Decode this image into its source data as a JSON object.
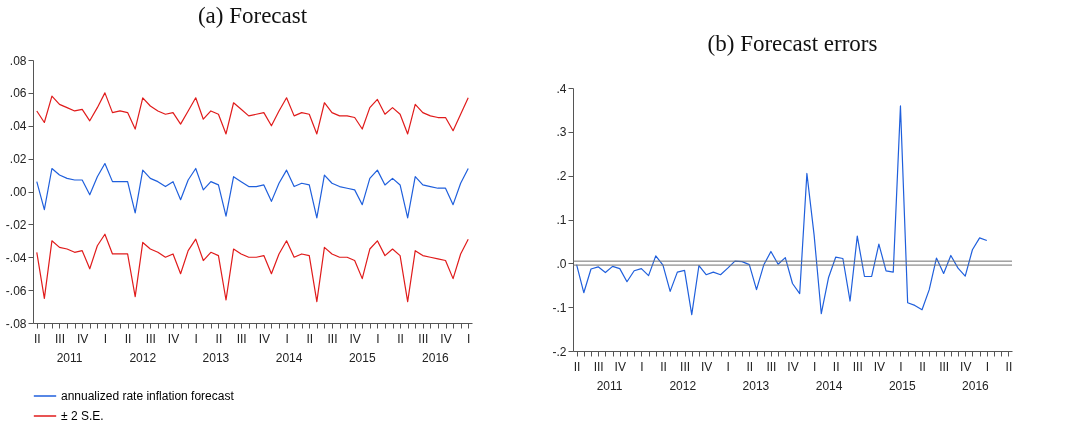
{
  "chart_data": [
    {
      "type": "line",
      "title": "(a) Forecast",
      "categories": [
        "II",
        null,
        null,
        "III",
        null,
        null,
        "IV",
        null,
        null,
        "I",
        null,
        null,
        "II",
        null,
        null,
        "III",
        null,
        null,
        "IV",
        null,
        null,
        "I",
        null,
        null,
        "II",
        null,
        null,
        "III",
        null,
        null,
        "IV",
        null,
        null,
        "I",
        null,
        null,
        "II",
        null,
        null,
        "III",
        null,
        null,
        "IV",
        null,
        null,
        "I",
        null,
        null,
        "II",
        null,
        null,
        "III",
        null,
        null,
        "IV",
        null,
        null,
        "I"
      ],
      "series": [
        {
          "name": "annualized rate inflation forecast",
          "color": "#1f5fdc",
          "values": [
            0.006,
            -0.011,
            0.014,
            0.01,
            0.008,
            0.007,
            0.007,
            -0.002,
            0.009,
            0.017,
            0.006,
            0.006,
            0.006,
            -0.013,
            0.013,
            0.008,
            0.006,
            0.003,
            0.006,
            -0.005,
            0.007,
            0.014,
            0.001,
            0.006,
            0.004,
            -0.015,
            0.009,
            0.006,
            0.003,
            0.003,
            0.004,
            -0.006,
            0.005,
            0.013,
            0.003,
            0.005,
            0.004,
            -0.016,
            0.01,
            0.005,
            0.003,
            0.002,
            0.001,
            -0.008,
            0.008,
            0.013,
            0.004,
            0.008,
            0.004,
            -0.016,
            0.009,
            0.004,
            0.003,
            0.002,
            0.002,
            -0.008,
            0.005,
            0.014
          ]
        },
        {
          "name": "± 2 S.E.",
          "color": "#e01b1b",
          "values": [
            0.049,
            0.042,
            0.058,
            0.053,
            0.051,
            0.049,
            0.05,
            0.043,
            0.051,
            0.06,
            0.048,
            0.049,
            0.048,
            0.038,
            0.057,
            0.052,
            0.049,
            0.047,
            0.048,
            0.041,
            0.049,
            0.057,
            0.044,
            0.049,
            0.047,
            0.035,
            0.054,
            0.05,
            0.046,
            0.047,
            0.048,
            0.04,
            0.049,
            0.057,
            0.046,
            0.048,
            0.047,
            0.035,
            0.054,
            0.048,
            0.046,
            0.046,
            0.045,
            0.038,
            0.051,
            0.056,
            0.047,
            0.051,
            0.047,
            0.035,
            0.053,
            0.048,
            0.046,
            0.045,
            0.045,
            0.037,
            0.047,
            0.057
          ]
        },
        {
          "color": "#e01b1b",
          "values": [
            -0.037,
            -0.065,
            -0.03,
            -0.034,
            -0.035,
            -0.037,
            -0.036,
            -0.047,
            -0.033,
            -0.026,
            -0.038,
            -0.038,
            -0.038,
            -0.064,
            -0.031,
            -0.035,
            -0.037,
            -0.04,
            -0.038,
            -0.05,
            -0.036,
            -0.029,
            -0.042,
            -0.037,
            -0.039,
            -0.066,
            -0.035,
            -0.038,
            -0.04,
            -0.04,
            -0.039,
            -0.05,
            -0.038,
            -0.03,
            -0.04,
            -0.038,
            -0.039,
            -0.067,
            -0.034,
            -0.038,
            -0.04,
            -0.04,
            -0.042,
            -0.053,
            -0.035,
            -0.03,
            -0.039,
            -0.035,
            -0.039,
            -0.067,
            -0.036,
            -0.039,
            -0.04,
            -0.041,
            -0.042,
            -0.053,
            -0.038,
            -0.029
          ]
        }
      ],
      "ylim": [
        -0.08,
        0.08
      ],
      "yticks": [
        {
          "value": -0.08,
          "label": "-.08"
        },
        {
          "value": -0.06,
          "label": "-.06"
        },
        {
          "value": -0.04,
          "label": "-.04"
        },
        {
          "value": -0.02,
          "label": "-.02"
        },
        {
          "value": 0,
          "label": ".00"
        },
        {
          "value": 0.02,
          "label": ".02"
        },
        {
          "value": 0.04,
          "label": ".04"
        },
        {
          "value": 0.06,
          "label": ".06"
        },
        {
          "value": 0.08,
          "label": ".08"
        }
      ],
      "annotations": [
        "2011",
        "2012",
        "2013",
        "2014",
        "2015",
        "2016"
      ],
      "legend": "bottom",
      "grid": false,
      "line_style": "solid"
    },
    {
      "type": "line",
      "title": "(b) Forecast errors",
      "categories": [
        "II",
        null,
        null,
        "III",
        null,
        null,
        "IV",
        null,
        null,
        "I",
        null,
        null,
        "II",
        null,
        null,
        "III",
        null,
        null,
        "IV",
        null,
        null,
        "I",
        null,
        null,
        "II",
        null,
        null,
        "III",
        null,
        null,
        "IV",
        null,
        null,
        "I",
        null,
        null,
        "II",
        null,
        null,
        "III",
        null,
        null,
        "IV",
        null,
        null,
        "I",
        null,
        null,
        "II",
        null,
        null,
        "III",
        null,
        null,
        "IV",
        null,
        null,
        "I",
        null,
        null,
        "II"
      ],
      "series": [
        {
          "color": "#1f5fdc",
          "values": [
            -0.003,
            -0.067,
            -0.013,
            -0.008,
            -0.021,
            -0.007,
            -0.012,
            -0.042,
            -0.017,
            -0.012,
            -0.028,
            0.017,
            -0.004,
            -0.064,
            -0.02,
            -0.016,
            -0.117,
            -0.005,
            -0.026,
            -0.02,
            -0.026,
            -0.011,
            0.005,
            0.004,
            -0.003,
            -0.06,
            -0.004,
            0.027,
            -0.002,
            0.013,
            -0.046,
            -0.069,
            0.205,
            0.065,
            -0.115,
            -0.033,
            0.014,
            0.011,
            -0.086,
            0.062,
            -0.03,
            -0.03,
            0.044,
            -0.017,
            -0.02,
            0.359,
            -0.09,
            -0.096,
            -0.106,
            -0.06,
            0.012,
            -0.023,
            0.018,
            -0.011,
            -0.029,
            0.031,
            0.058,
            0.052,
            null,
            null,
            null
          ]
        }
      ],
      "ylim": [
        -0.2,
        0.4
      ],
      "yticks": [
        {
          "value": -0.2,
          "label": "-.2"
        },
        {
          "value": -0.1,
          "label": "-.1"
        },
        {
          "value": 0,
          "label": ".0"
        },
        {
          "value": 0.1,
          "label": ".1"
        },
        {
          "value": 0.2,
          "label": ".2"
        },
        {
          "value": 0.3,
          "label": ".3"
        },
        {
          "value": 0.4,
          "label": ".4"
        }
      ],
      "ref_lines": [
        {
          "axis": "y",
          "value": 0.005,
          "color": "#707070"
        },
        {
          "axis": "y",
          "value": -0.004,
          "color": "#707070"
        }
      ],
      "annotations": [
        "2011",
        "2012",
        "2013",
        "2014",
        "2015",
        "2016"
      ],
      "grid": false,
      "line_style": "solid"
    }
  ]
}
